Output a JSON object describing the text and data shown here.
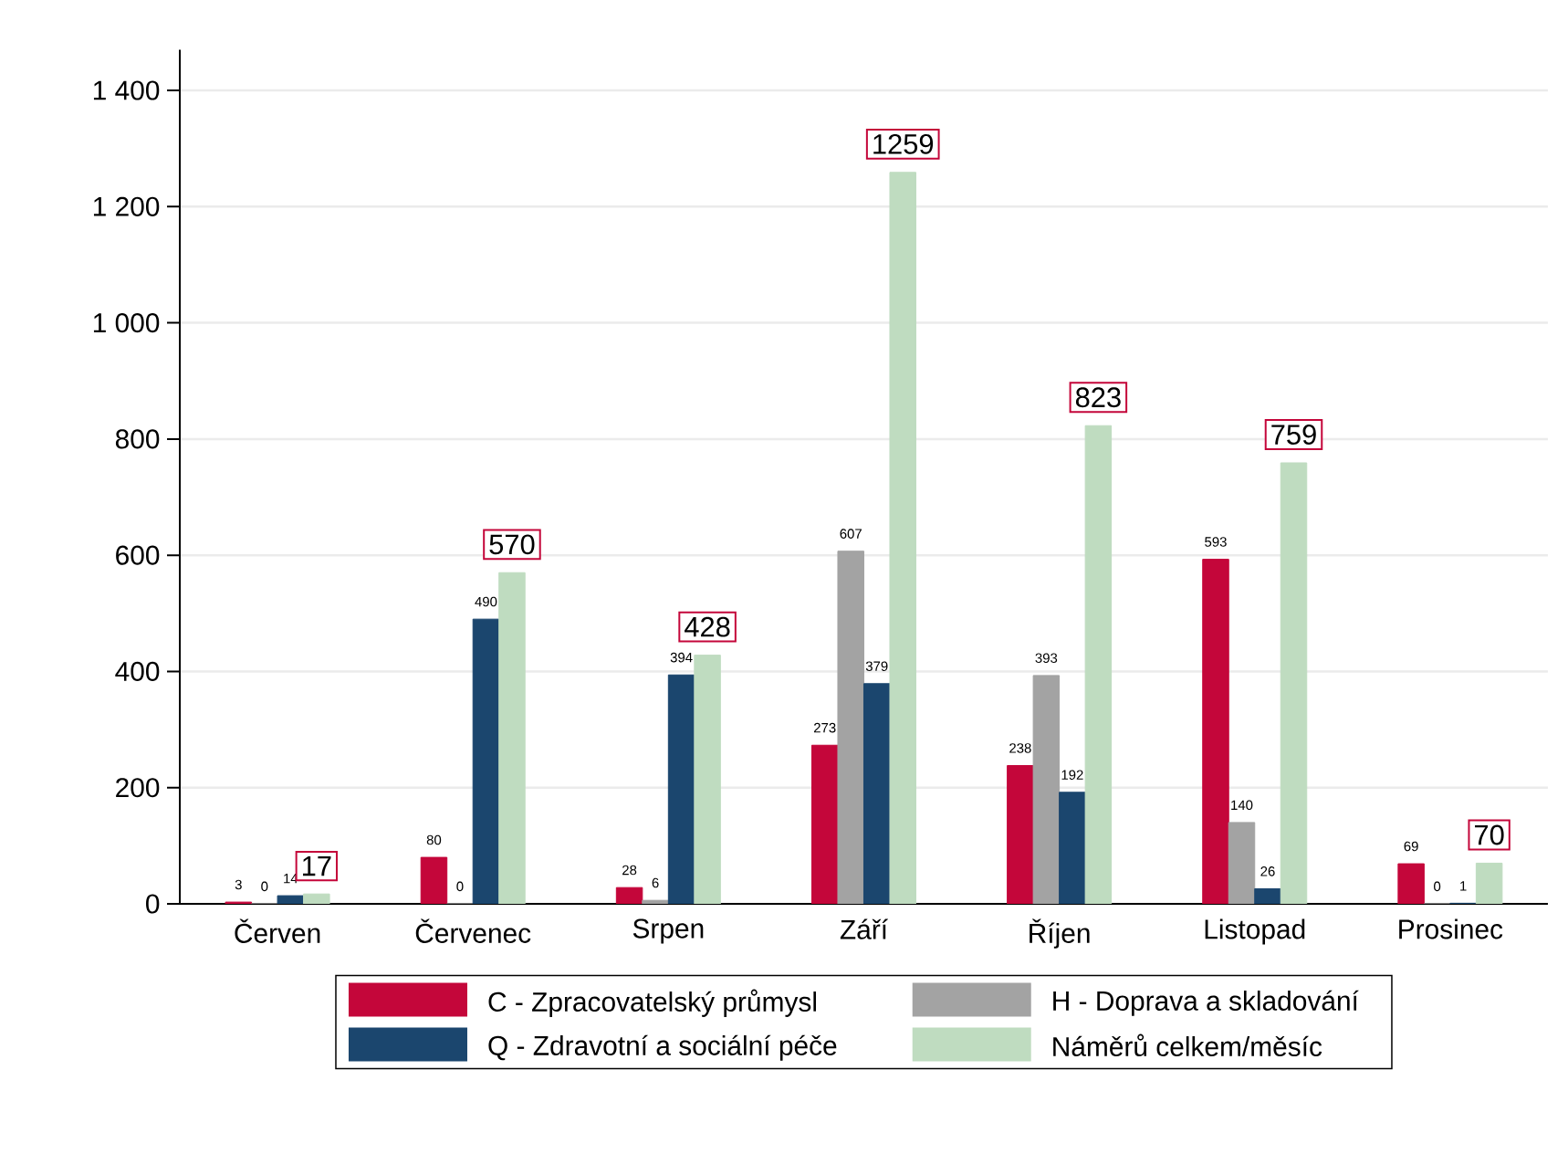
{
  "chart_data": {
    "type": "bar",
    "categories": [
      "Červen",
      "Červenec",
      "Srpen",
      "Září",
      "Říjen",
      "Listopad",
      "Prosinec"
    ],
    "series": [
      {
        "name": "C - Zpracovatelský průmysl",
        "color": "#c4063a",
        "values": [
          3,
          80,
          28,
          273,
          238,
          593,
          69
        ]
      },
      {
        "name": "H - Doprava a skladování",
        "color": "#a3a3a3",
        "values": [
          0,
          0,
          6,
          607,
          393,
          140,
          0
        ]
      },
      {
        "name": "Q - Zdravotní a sociální péče",
        "color": "#1b466e",
        "values": [
          14,
          490,
          394,
          379,
          192,
          26,
          1
        ]
      },
      {
        "name": "Náměrů celkem/měsíc",
        "color": "#bfdcc0",
        "values": [
          17,
          570,
          428,
          1259,
          823,
          759,
          70
        ]
      }
    ],
    "ylim": [
      0,
      1470
    ],
    "yticks": [
      0,
      200,
      400,
      600,
      800,
      {
        "value": 1000,
        "label": "1 000"
      },
      {
        "value": 1200,
        "label": "1 200"
      },
      {
        "value": 1400,
        "label": "1 400"
      }
    ],
    "grid": "y",
    "legend": "bottom",
    "data_labels": true
  }
}
